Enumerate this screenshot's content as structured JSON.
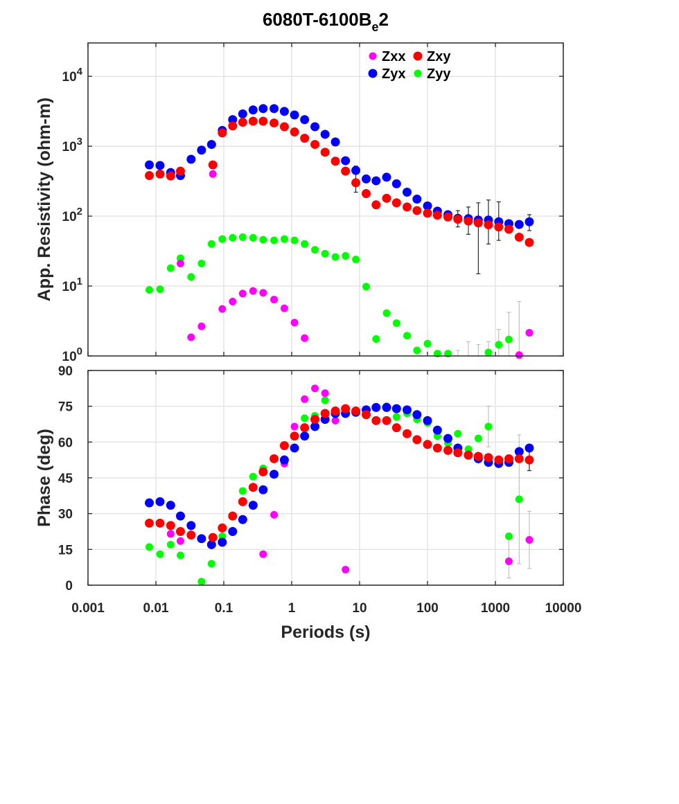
{
  "title": {
    "main": "6080T-6100B",
    "sub": "e",
    "tail": "2"
  },
  "colors": {
    "Zxx": "#ff00ff",
    "Zxy": "#ff0000",
    "Zyx": "#0000ff",
    "Zyy": "#00ff00"
  },
  "chart_data": [
    {
      "type": "scatter",
      "panel": "resistivity",
      "ylabel": "App. Resistivity (ohm-m)",
      "xscale": "log",
      "yscale": "log",
      "xlim": [
        0.001,
        10000
      ],
      "ylim": [
        1,
        30000
      ],
      "grid": true,
      "legend_position": "top-right",
      "y_ticks": [
        {
          "value": 1,
          "base": "10",
          "exp": "0"
        },
        {
          "value": 10,
          "base": "10",
          "exp": "1"
        },
        {
          "value": 100,
          "base": "10",
          "exp": "2"
        },
        {
          "value": 1000,
          "base": "10",
          "exp": "3"
        },
        {
          "value": 10000,
          "base": "10",
          "exp": "4"
        }
      ],
      "series": [
        {
          "name": "Zxy",
          "points": [
            [
              0.008,
              380
            ],
            [
              0.0115,
              400
            ],
            [
              0.0165,
              375
            ],
            [
              0.023,
              440
            ],
            [
              0.069,
              540
            ],
            [
              0.095,
              1550
            ],
            [
              0.135,
              1950
            ],
            [
              0.19,
              2200
            ],
            [
              0.27,
              2280
            ],
            [
              0.38,
              2280
            ],
            [
              0.55,
              2150
            ],
            [
              0.78,
              1900
            ],
            [
              1.1,
              1600
            ],
            [
              1.55,
              1300
            ],
            [
              2.2,
              1060
            ],
            [
              3.1,
              820
            ],
            [
              4.4,
              610
            ],
            [
              6.2,
              440
            ],
            [
              8.8,
              300
            ],
            [
              12.5,
              210
            ],
            [
              17.5,
              145
            ],
            [
              25,
              180
            ],
            [
              35,
              155
            ],
            [
              50,
              135
            ],
            [
              70,
              120
            ],
            [
              100,
              110
            ],
            [
              140,
              103
            ],
            [
              200,
              97
            ],
            [
              280,
              90
            ],
            [
              400,
              85
            ],
            [
              560,
              80
            ],
            [
              790,
              75
            ],
            [
              1120,
              70
            ],
            [
              1580,
              65
            ],
            [
              2240,
              50
            ],
            [
              3160,
              42
            ]
          ]
        },
        {
          "name": "Zyx",
          "points": [
            [
              0.008,
              540
            ],
            [
              0.0115,
              530
            ],
            [
              0.0165,
              420
            ],
            [
              0.023,
              380
            ],
            [
              0.033,
              650
            ],
            [
              0.047,
              880
            ],
            [
              0.066,
              1060
            ],
            [
              0.095,
              1680
            ],
            [
              0.135,
              2400
            ],
            [
              0.19,
              2900
            ],
            [
              0.27,
              3300
            ],
            [
              0.38,
              3450
            ],
            [
              0.55,
              3450
            ],
            [
              0.78,
              3150
            ],
            [
              1.1,
              2800
            ],
            [
              1.55,
              2400
            ],
            [
              2.2,
              1900
            ],
            [
              3.1,
              1480
            ],
            [
              4.4,
              1150
            ],
            [
              6.2,
              620
            ],
            [
              8.8,
              450
            ],
            [
              12.5,
              340
            ],
            [
              17.5,
              320
            ],
            [
              25,
              360
            ],
            [
              35,
              290
            ],
            [
              50,
              220
            ],
            [
              70,
              175
            ],
            [
              100,
              140
            ],
            [
              140,
              118
            ],
            [
              200,
              105
            ],
            [
              280,
              93
            ],
            [
              400,
              92
            ],
            [
              560,
              88
            ],
            [
              790,
              88
            ],
            [
              1120,
              83
            ],
            [
              1580,
              78
            ],
            [
              2240,
              76
            ],
            [
              3160,
              83
            ]
          ]
        },
        {
          "name": "Zxx",
          "points": [
            [
              0.023,
              21
            ],
            [
              0.033,
              1.85
            ],
            [
              0.047,
              2.65
            ],
            [
              0.069,
              400
            ],
            [
              0.095,
              4.7
            ],
            [
              0.135,
              6
            ],
            [
              0.19,
              7.8
            ],
            [
              0.27,
              8.5
            ],
            [
              0.38,
              8
            ],
            [
              0.55,
              6.4
            ],
            [
              0.78,
              4.8
            ],
            [
              1.1,
              3
            ],
            [
              1.55,
              1.8
            ],
            [
              2240,
              1.03
            ],
            [
              3160,
              2.15
            ]
          ]
        },
        {
          "name": "Zyy",
          "points": [
            [
              0.008,
              8.8
            ],
            [
              0.0115,
              9
            ],
            [
              0.0165,
              18
            ],
            [
              0.023,
              25
            ],
            [
              0.033,
              13.5
            ],
            [
              0.047,
              21
            ],
            [
              0.066,
              40
            ],
            [
              0.095,
              47
            ],
            [
              0.135,
              49
            ],
            [
              0.19,
              50
            ],
            [
              0.27,
              49
            ],
            [
              0.38,
              46
            ],
            [
              0.55,
              45
            ],
            [
              0.78,
              47
            ],
            [
              1.1,
              45
            ],
            [
              1.55,
              40
            ],
            [
              2.2,
              33
            ],
            [
              3.1,
              29
            ],
            [
              4.4,
              26
            ],
            [
              6.2,
              27
            ],
            [
              8.8,
              24
            ],
            [
              12.5,
              9.8
            ],
            [
              17.5,
              1.75
            ],
            [
              25,
              4.1
            ],
            [
              35,
              2.95
            ],
            [
              50,
              1.95
            ],
            [
              70,
              1.2
            ],
            [
              100,
              1.5
            ],
            [
              140,
              1.08
            ],
            [
              200,
              1.08
            ],
            [
              790,
              1.12
            ],
            [
              1120,
              1.45
            ],
            [
              1580,
              1.72
            ]
          ]
        }
      ]
    },
    {
      "type": "scatter",
      "panel": "phase",
      "xlabel": "Periods (s)",
      "ylabel": "Phase (deg)",
      "xscale": "log",
      "xlim": [
        0.001,
        10000
      ],
      "ylim": [
        0,
        90
      ],
      "grid": true,
      "x_ticks": [
        {
          "value": 0.001,
          "label": "0.001"
        },
        {
          "value": 0.01,
          "label": "0.01"
        },
        {
          "value": 0.1,
          "label": "0.1"
        },
        {
          "value": 1,
          "label": "1"
        },
        {
          "value": 10,
          "label": "10"
        },
        {
          "value": 100,
          "label": "100"
        },
        {
          "value": 1000,
          "label": "1000"
        },
        {
          "value": 10000,
          "label": "10000"
        }
      ],
      "y_ticks": [
        {
          "value": 0,
          "label": "0"
        },
        {
          "value": 15,
          "label": "15"
        },
        {
          "value": 30,
          "label": "30"
        },
        {
          "value": 45,
          "label": "45"
        },
        {
          "value": 60,
          "label": "60"
        },
        {
          "value": 75,
          "label": "75"
        },
        {
          "value": 90,
          "label": "90"
        }
      ],
      "series": [
        {
          "name": "Zxy",
          "points": [
            [
              0.008,
              26
            ],
            [
              0.0115,
              26
            ],
            [
              0.0165,
              25
            ],
            [
              0.023,
              22.5
            ],
            [
              0.033,
              21
            ],
            [
              0.069,
              20
            ],
            [
              0.095,
              24
            ],
            [
              0.135,
              29
            ],
            [
              0.19,
              35
            ],
            [
              0.27,
              41
            ],
            [
              0.38,
              47.5
            ],
            [
              0.55,
              53
            ],
            [
              0.78,
              58.5
            ],
            [
              1.1,
              62.5
            ],
            [
              1.55,
              66
            ],
            [
              2.2,
              69.5
            ],
            [
              3.1,
              72
            ],
            [
              4.4,
              73
            ],
            [
              6.2,
              74
            ],
            [
              8.8,
              73
            ],
            [
              12.5,
              71.5
            ],
            [
              17.5,
              69
            ],
            [
              25,
              69
            ],
            [
              35,
              66
            ],
            [
              50,
              63.5
            ],
            [
              70,
              61
            ],
            [
              100,
              59
            ],
            [
              140,
              57.5
            ],
            [
              200,
              56.5
            ],
            [
              280,
              55.5
            ],
            [
              400,
              54.5
            ],
            [
              560,
              54
            ],
            [
              790,
              53.5
            ],
            [
              1120,
              52.5
            ],
            [
              1580,
              53
            ],
            [
              2240,
              53
            ],
            [
              3160,
              52.5
            ]
          ]
        },
        {
          "name": "Zyx",
          "points": [
            [
              0.008,
              34.5
            ],
            [
              0.0115,
              35
            ],
            [
              0.0165,
              33.5
            ],
            [
              0.023,
              29
            ],
            [
              0.033,
              25
            ],
            [
              0.047,
              19.5
            ],
            [
              0.066,
              17
            ],
            [
              0.095,
              18
            ],
            [
              0.135,
              22.5
            ],
            [
              0.19,
              27.5
            ],
            [
              0.27,
              33.5
            ],
            [
              0.38,
              40
            ],
            [
              0.55,
              46.5
            ],
            [
              0.78,
              52.5
            ],
            [
              1.1,
              57.5
            ],
            [
              1.55,
              62.5
            ],
            [
              2.2,
              66.5
            ],
            [
              3.1,
              69.5
            ],
            [
              4.4,
              72
            ],
            [
              6.2,
              72
            ],
            [
              8.8,
              72.5
            ],
            [
              12.5,
              73.5
            ],
            [
              17.5,
              74.5
            ],
            [
              25,
              74.5
            ],
            [
              35,
              74
            ],
            [
              50,
              73.5
            ],
            [
              70,
              71.5
            ],
            [
              100,
              69
            ],
            [
              140,
              65
            ],
            [
              200,
              61.5
            ],
            [
              280,
              57.5
            ],
            [
              400,
              54.5
            ],
            [
              560,
              53
            ],
            [
              790,
              51.5
            ],
            [
              1120,
              51
            ],
            [
              1580,
              51.5
            ],
            [
              2240,
              56
            ],
            [
              3160,
              57.5
            ]
          ]
        },
        {
          "name": "Zxx",
          "points": [
            [
              0.0165,
              21.5
            ],
            [
              0.023,
              18.5
            ],
            [
              0.38,
              13
            ],
            [
              0.55,
              29.5
            ],
            [
              0.78,
              51
            ],
            [
              1.1,
              66.5
            ],
            [
              1.55,
              78
            ],
            [
              2.2,
              82.5
            ],
            [
              3.1,
              80.5
            ],
            [
              4.4,
              69
            ],
            [
              6.2,
              6.5
            ],
            [
              1580,
              10
            ],
            [
              3160,
              19
            ]
          ]
        },
        {
          "name": "Zyy",
          "points": [
            [
              0.008,
              16
            ],
            [
              0.0115,
              13
            ],
            [
              0.0165,
              17
            ],
            [
              0.023,
              12.5
            ],
            [
              0.047,
              1.5
            ],
            [
              0.066,
              9
            ],
            [
              0.095,
              20.5
            ],
            [
              0.19,
              39.5
            ],
            [
              0.27,
              45.5
            ],
            [
              0.38,
              49
            ],
            [
              1.55,
              70
            ],
            [
              2.2,
              71
            ],
            [
              3.1,
              77.5
            ],
            [
              25,
              75
            ],
            [
              35,
              70.5
            ],
            [
              50,
              72
            ],
            [
              70,
              69.5
            ],
            [
              100,
              68
            ],
            [
              140,
              62.5
            ],
            [
              200,
              59.5
            ],
            [
              280,
              63.5
            ],
            [
              400,
              57
            ],
            [
              560,
              61.5
            ],
            [
              790,
              66.5
            ],
            [
              1580,
              20.5
            ],
            [
              2240,
              36
            ]
          ]
        }
      ]
    }
  ]
}
